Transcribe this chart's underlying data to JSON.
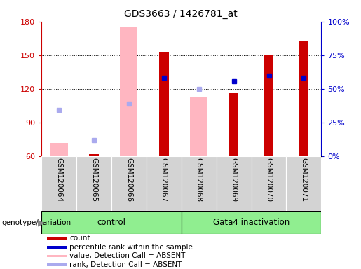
{
  "title": "GDS3663 / 1426781_at",
  "samples": [
    "GSM120064",
    "GSM120065",
    "GSM120066",
    "GSM120067",
    "GSM120068",
    "GSM120069",
    "GSM120070",
    "GSM120071"
  ],
  "ylim_left": [
    60,
    180
  ],
  "ylim_right": [
    0,
    100
  ],
  "yticks_left": [
    60,
    90,
    120,
    150,
    180
  ],
  "yticks_right": [
    0,
    25,
    50,
    75,
    100
  ],
  "ytick_labels_right": [
    "0%",
    "25%",
    "50%",
    "75%",
    "100%"
  ],
  "red_bars": {
    "GSM120064": null,
    "GSM120065": 62,
    "GSM120066": null,
    "GSM120067": 153,
    "GSM120068": null,
    "GSM120069": 116,
    "GSM120070": 150,
    "GSM120071": 163
  },
  "pink_bars": {
    "GSM120064": 72,
    "GSM120065": null,
    "GSM120066": 175,
    "GSM120067": null,
    "GSM120068": 113,
    "GSM120069": null,
    "GSM120070": null,
    "GSM120071": null
  },
  "blue_squares_left_axis": {
    "GSM120067": 130,
    "GSM120069": 127,
    "GSM120070": 132,
    "GSM120071": 130
  },
  "light_blue_squares_left_axis": {
    "GSM120064": 101,
    "GSM120065": 74,
    "GSM120066": 107,
    "GSM120068": 120
  },
  "bar_width": 0.5,
  "left_axis_color": "#cc0000",
  "right_axis_color": "#0000cc",
  "control_samples": [
    0,
    1,
    2,
    3
  ],
  "gata4_samples": [
    4,
    5,
    6,
    7
  ],
  "group_bg_color": "#90ee90",
  "legend_items": [
    {
      "color": "#cc0000",
      "label": "count"
    },
    {
      "color": "#0000cc",
      "label": "percentile rank within the sample"
    },
    {
      "color": "#ffb6c1",
      "label": "value, Detection Call = ABSENT"
    },
    {
      "color": "#aaaaee",
      "label": "rank, Detection Call = ABSENT"
    }
  ]
}
